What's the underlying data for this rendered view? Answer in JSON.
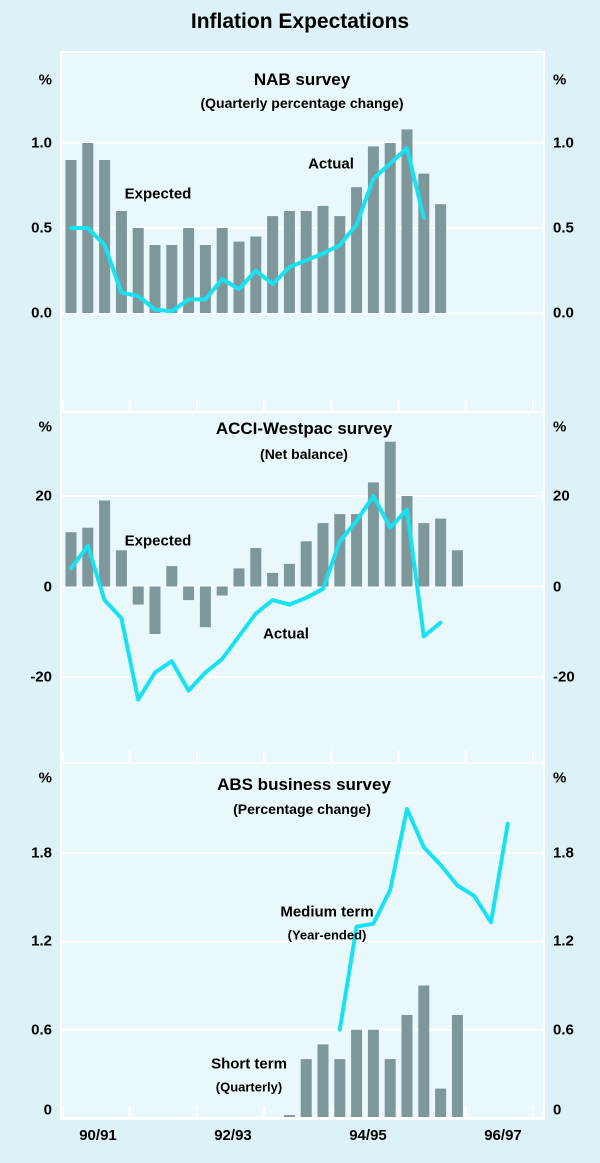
{
  "title": "Inflation Expectations",
  "colors": {
    "background_outer": "#DCF2F6",
    "background_plot": "#E9F9FB",
    "bar": "#7E979B",
    "line": "#19E2F0",
    "grid": "#FFFFFF",
    "text": "#000000"
  },
  "x_axis": {
    "tick_labels": [
      "90/91",
      "92/93",
      "94/95",
      "96/97"
    ]
  },
  "panels": [
    {
      "heading": "NAB survey",
      "subheading": "(Quarterly percentage change)",
      "unit_left": "%",
      "unit_right": "%",
      "y_tick_labels": [
        "1.0",
        "0.5",
        "0.0"
      ],
      "bar_series_label": "Expected",
      "line_series_label": "Actual"
    },
    {
      "heading": "ACCI-Westpac survey",
      "subheading": "(Net balance)",
      "unit_left": "%",
      "unit_right": "%",
      "y_tick_labels": [
        "20",
        "0",
        "-20"
      ],
      "bar_series_label": "Expected",
      "line_series_label": "Actual"
    },
    {
      "heading": "ABS  business survey",
      "subheading": "(Percentage change)",
      "unit_left": "%",
      "unit_right": "%",
      "y_tick_labels": [
        "1.8",
        "1.2",
        "0.6",
        "0"
      ],
      "line_series_label": "Medium term",
      "line_series_sublabel": "(Year-ended)",
      "bar_series_label": "Short term",
      "bar_series_sublabel": "(Quarterly)"
    }
  ],
  "chart_data": [
    {
      "type": "bar+line",
      "title": "NAB survey",
      "subtitle": "(Quarterly percentage change)",
      "xlabel": "",
      "ylabel": "%",
      "x_tick_labels": [
        "90/91",
        "92/93",
        "94/95",
        "96/97"
      ],
      "y_gridlines": [
        0.0,
        0.5,
        1.0
      ],
      "grid": true,
      "series": [
        {
          "name": "Expected",
          "kind": "bar",
          "start_slot": 0,
          "values": [
            0.9,
            1.0,
            0.9,
            0.6,
            0.5,
            0.4,
            0.4,
            0.5,
            0.4,
            0.5,
            0.42,
            0.45,
            0.57,
            0.6,
            0.6,
            0.63,
            0.57,
            0.74,
            0.98,
            1.0,
            1.08,
            0.82,
            0.64
          ]
        },
        {
          "name": "Actual",
          "kind": "line",
          "start_slot": 0,
          "values": [
            0.5,
            0.5,
            0.4,
            0.12,
            0.1,
            0.02,
            0.01,
            0.08,
            0.08,
            0.2,
            0.14,
            0.25,
            0.17,
            0.27,
            0.31,
            0.35,
            0.4,
            0.52,
            0.79,
            0.88,
            0.97,
            0.56
          ]
        }
      ]
    },
    {
      "type": "bar+line",
      "title": "ACCI-Westpac survey",
      "subtitle": "(Net balance)",
      "xlabel": "",
      "ylabel": "%",
      "x_tick_labels": [
        "90/91",
        "92/93",
        "94/95",
        "96/97"
      ],
      "y_gridlines": [
        -20,
        0,
        20
      ],
      "grid": true,
      "series": [
        {
          "name": "Expected",
          "kind": "bar",
          "start_slot": 0,
          "values": [
            12,
            13,
            19,
            8,
            -4,
            -10.5,
            4.5,
            -3,
            -9,
            -2,
            4,
            8.5,
            3,
            5,
            10,
            14,
            16,
            16,
            23,
            32,
            20,
            14,
            15,
            8
          ]
        },
        {
          "name": "Actual",
          "kind": "line",
          "start_slot": 0,
          "values": [
            4,
            9,
            -3,
            -7,
            -25,
            -19,
            -16.5,
            -23,
            -19,
            -16,
            -11,
            -6,
            -3,
            -4,
            -2.5,
            -0.5,
            10,
            14.5,
            20,
            13,
            17,
            -11,
            -8
          ]
        }
      ]
    },
    {
      "type": "bar+line",
      "title": "ABS business survey",
      "subtitle": "(Percentage change)",
      "xlabel": "",
      "ylabel": "%",
      "x_tick_labels": [
        "90/91",
        "92/93",
        "94/95",
        "96/97"
      ],
      "y_gridlines": [
        0,
        0.6,
        1.2,
        1.8
      ],
      "grid": true,
      "series": [
        {
          "name": "Short term (Quarterly)",
          "kind": "bar",
          "start_slot": 13,
          "values": [
            0.02,
            0.4,
            0.5,
            0.4,
            0.6,
            0.6,
            0.4,
            0.7,
            0.9,
            0.2,
            0.7
          ]
        },
        {
          "name": "Medium term (Year-ended)",
          "kind": "line",
          "start_slot": 16,
          "values": [
            0.6,
            1.3,
            1.32,
            1.55,
            2.1,
            1.84,
            1.72,
            1.58,
            1.51,
            1.33,
            2.0
          ]
        }
      ]
    }
  ]
}
